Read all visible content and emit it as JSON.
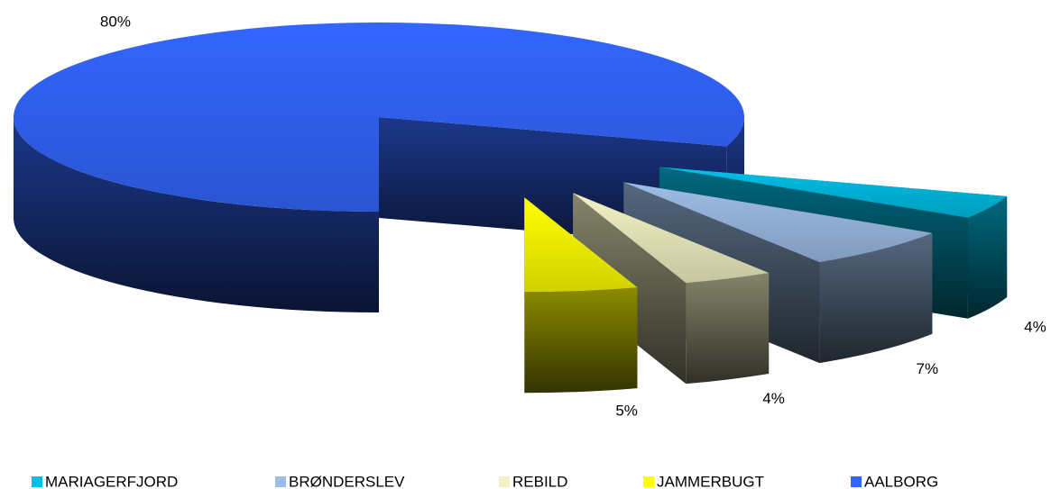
{
  "chart_data": {
    "type": "pie3d",
    "categories": [
      "MARIAGERFJORD",
      "BRØNDERSLEV",
      "REBILD",
      "JAMMERBUGT",
      "AALBORG"
    ],
    "values": [
      4,
      7,
      4,
      5,
      80
    ],
    "value_labels": [
      "4%",
      "7%",
      "4%",
      "5%",
      "80%"
    ],
    "colors": [
      "#00bfe6",
      "#9dbde6",
      "#f2f2c4",
      "#ffff00",
      "#3366ff"
    ],
    "legend": "bottom"
  }
}
